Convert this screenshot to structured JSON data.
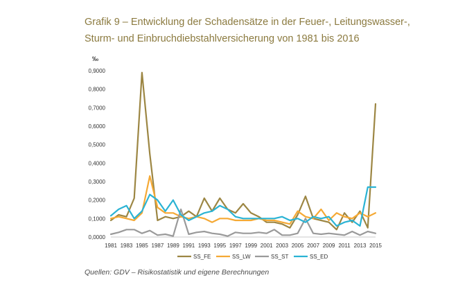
{
  "title_line1": "Grafik 9 – Entwicklung der Schadensätze in der Feuer-, Leitungswasser-,",
  "title_line2": "Sturm- und Einbruchdiebstahlversicherung von 1981 bis 2016",
  "source": "Quellen: GDV – Risikostatistik und eigene Berechnungen",
  "chart_data": {
    "type": "line",
    "title": "Entwicklung der Schadensätze in der Feuer-, Leitungswasser-, Sturm- und Einbruchdiebstahlversicherung von 1981 bis 2016",
    "ylabel": "‰",
    "xlabel": "",
    "ylim": [
      0,
      0.9
    ],
    "yticks": [
      "0,0000",
      "0,1000",
      "0,2000",
      "0,3000",
      "0,4000",
      "0,5000",
      "0,6000",
      "0,7000",
      "0,8000",
      "0,9000"
    ],
    "xtick_labels": [
      "1981",
      "1983",
      "1985",
      "1987",
      "1989",
      "1991",
      "1993",
      "1995",
      "1997",
      "1999",
      "2001",
      "2003",
      "2005",
      "2007",
      "2009",
      "2011",
      "2013",
      "2015"
    ],
    "x": [
      1981,
      1982,
      1983,
      1984,
      1985,
      1986,
      1987,
      1988,
      1989,
      1990,
      1991,
      1992,
      1993,
      1994,
      1995,
      1996,
      1997,
      1998,
      1999,
      2000,
      2001,
      2002,
      2003,
      2004,
      2005,
      2006,
      2007,
      2008,
      2009,
      2010,
      2011,
      2012,
      2013,
      2014,
      2015
    ],
    "legend_position": "bottom",
    "series": [
      {
        "name": "SS_FE",
        "color": "#9c8643",
        "values": [
          0.09,
          0.12,
          0.11,
          0.21,
          0.89,
          0.45,
          0.09,
          0.11,
          0.1,
          0.11,
          0.14,
          0.11,
          0.21,
          0.14,
          0.21,
          0.15,
          0.13,
          0.18,
          0.13,
          0.11,
          0.08,
          0.08,
          0.07,
          0.05,
          0.12,
          0.22,
          0.1,
          0.09,
          0.08,
          0.04,
          0.13,
          0.08,
          0.14,
          0.05,
          0.72
        ]
      },
      {
        "name": "SS_LW",
        "color": "#f5a934",
        "values": [
          0.1,
          0.11,
          0.1,
          0.09,
          0.13,
          0.33,
          0.16,
          0.13,
          0.13,
          0.11,
          0.1,
          0.11,
          0.1,
          0.08,
          0.1,
          0.1,
          0.09,
          0.09,
          0.09,
          0.1,
          0.09,
          0.09,
          0.08,
          0.07,
          0.14,
          0.11,
          0.1,
          0.15,
          0.09,
          0.13,
          0.11,
          0.1,
          0.13,
          0.11,
          0.13
        ]
      },
      {
        "name": "SS_ST",
        "color": "#9a9a9a",
        "values": [
          0.015,
          0.025,
          0.04,
          0.04,
          0.02,
          0.035,
          0.01,
          0.015,
          0.005,
          0.15,
          0.015,
          0.025,
          0.03,
          0.02,
          0.015,
          0.005,
          0.025,
          0.02,
          0.02,
          0.025,
          0.02,
          0.04,
          0.01,
          0.01,
          0.02,
          0.1,
          0.02,
          0.015,
          0.02,
          0.015,
          0.01,
          0.03,
          0.01,
          0.03,
          0.02
        ]
      },
      {
        "name": "SS_ED",
        "color": "#2ab3d4",
        "values": [
          0.115,
          0.15,
          0.17,
          0.1,
          0.14,
          0.23,
          0.2,
          0.14,
          0.2,
          0.12,
          0.09,
          0.11,
          0.13,
          0.14,
          0.17,
          0.15,
          0.11,
          0.1,
          0.1,
          0.1,
          0.1,
          0.1,
          0.11,
          0.09,
          0.1,
          0.08,
          0.11,
          0.1,
          0.11,
          0.06,
          0.08,
          0.09,
          0.06,
          0.27,
          0.27
        ]
      }
    ]
  }
}
